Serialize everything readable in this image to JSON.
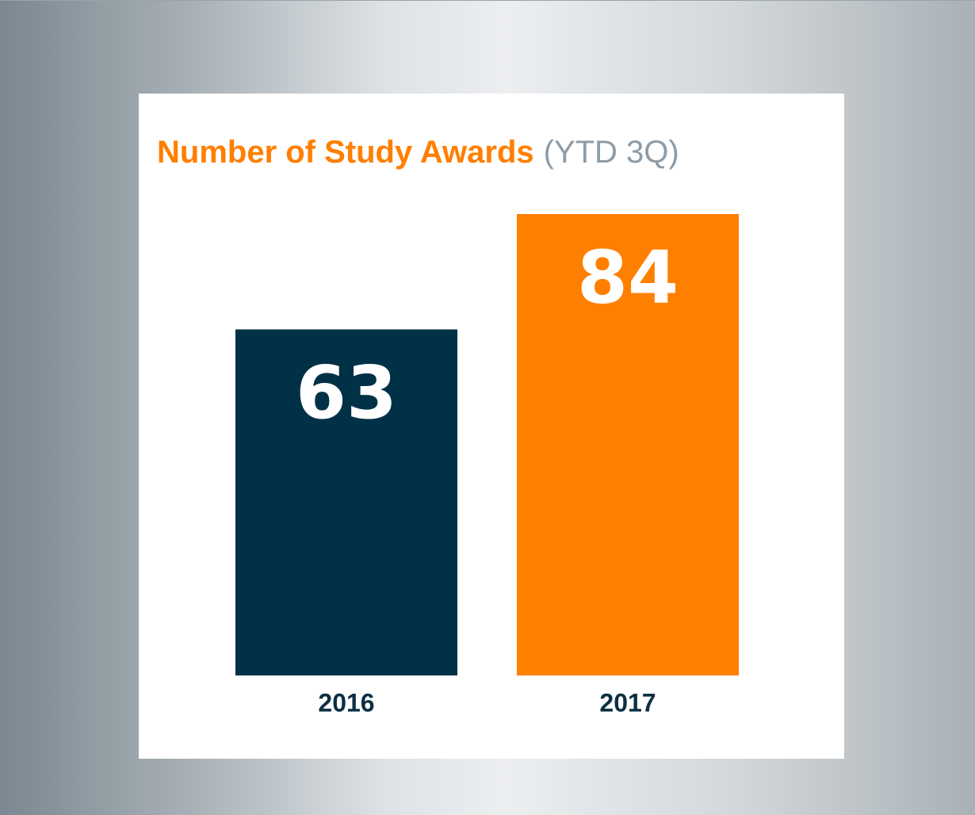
{
  "chart_data": {
    "type": "bar",
    "title": "Number of Study Awards",
    "subtitle": "(YTD 3Q)",
    "categories": [
      "2016",
      "2017"
    ],
    "values": [
      63,
      84
    ],
    "colors": [
      "#003146",
      "#ff7f00"
    ]
  }
}
